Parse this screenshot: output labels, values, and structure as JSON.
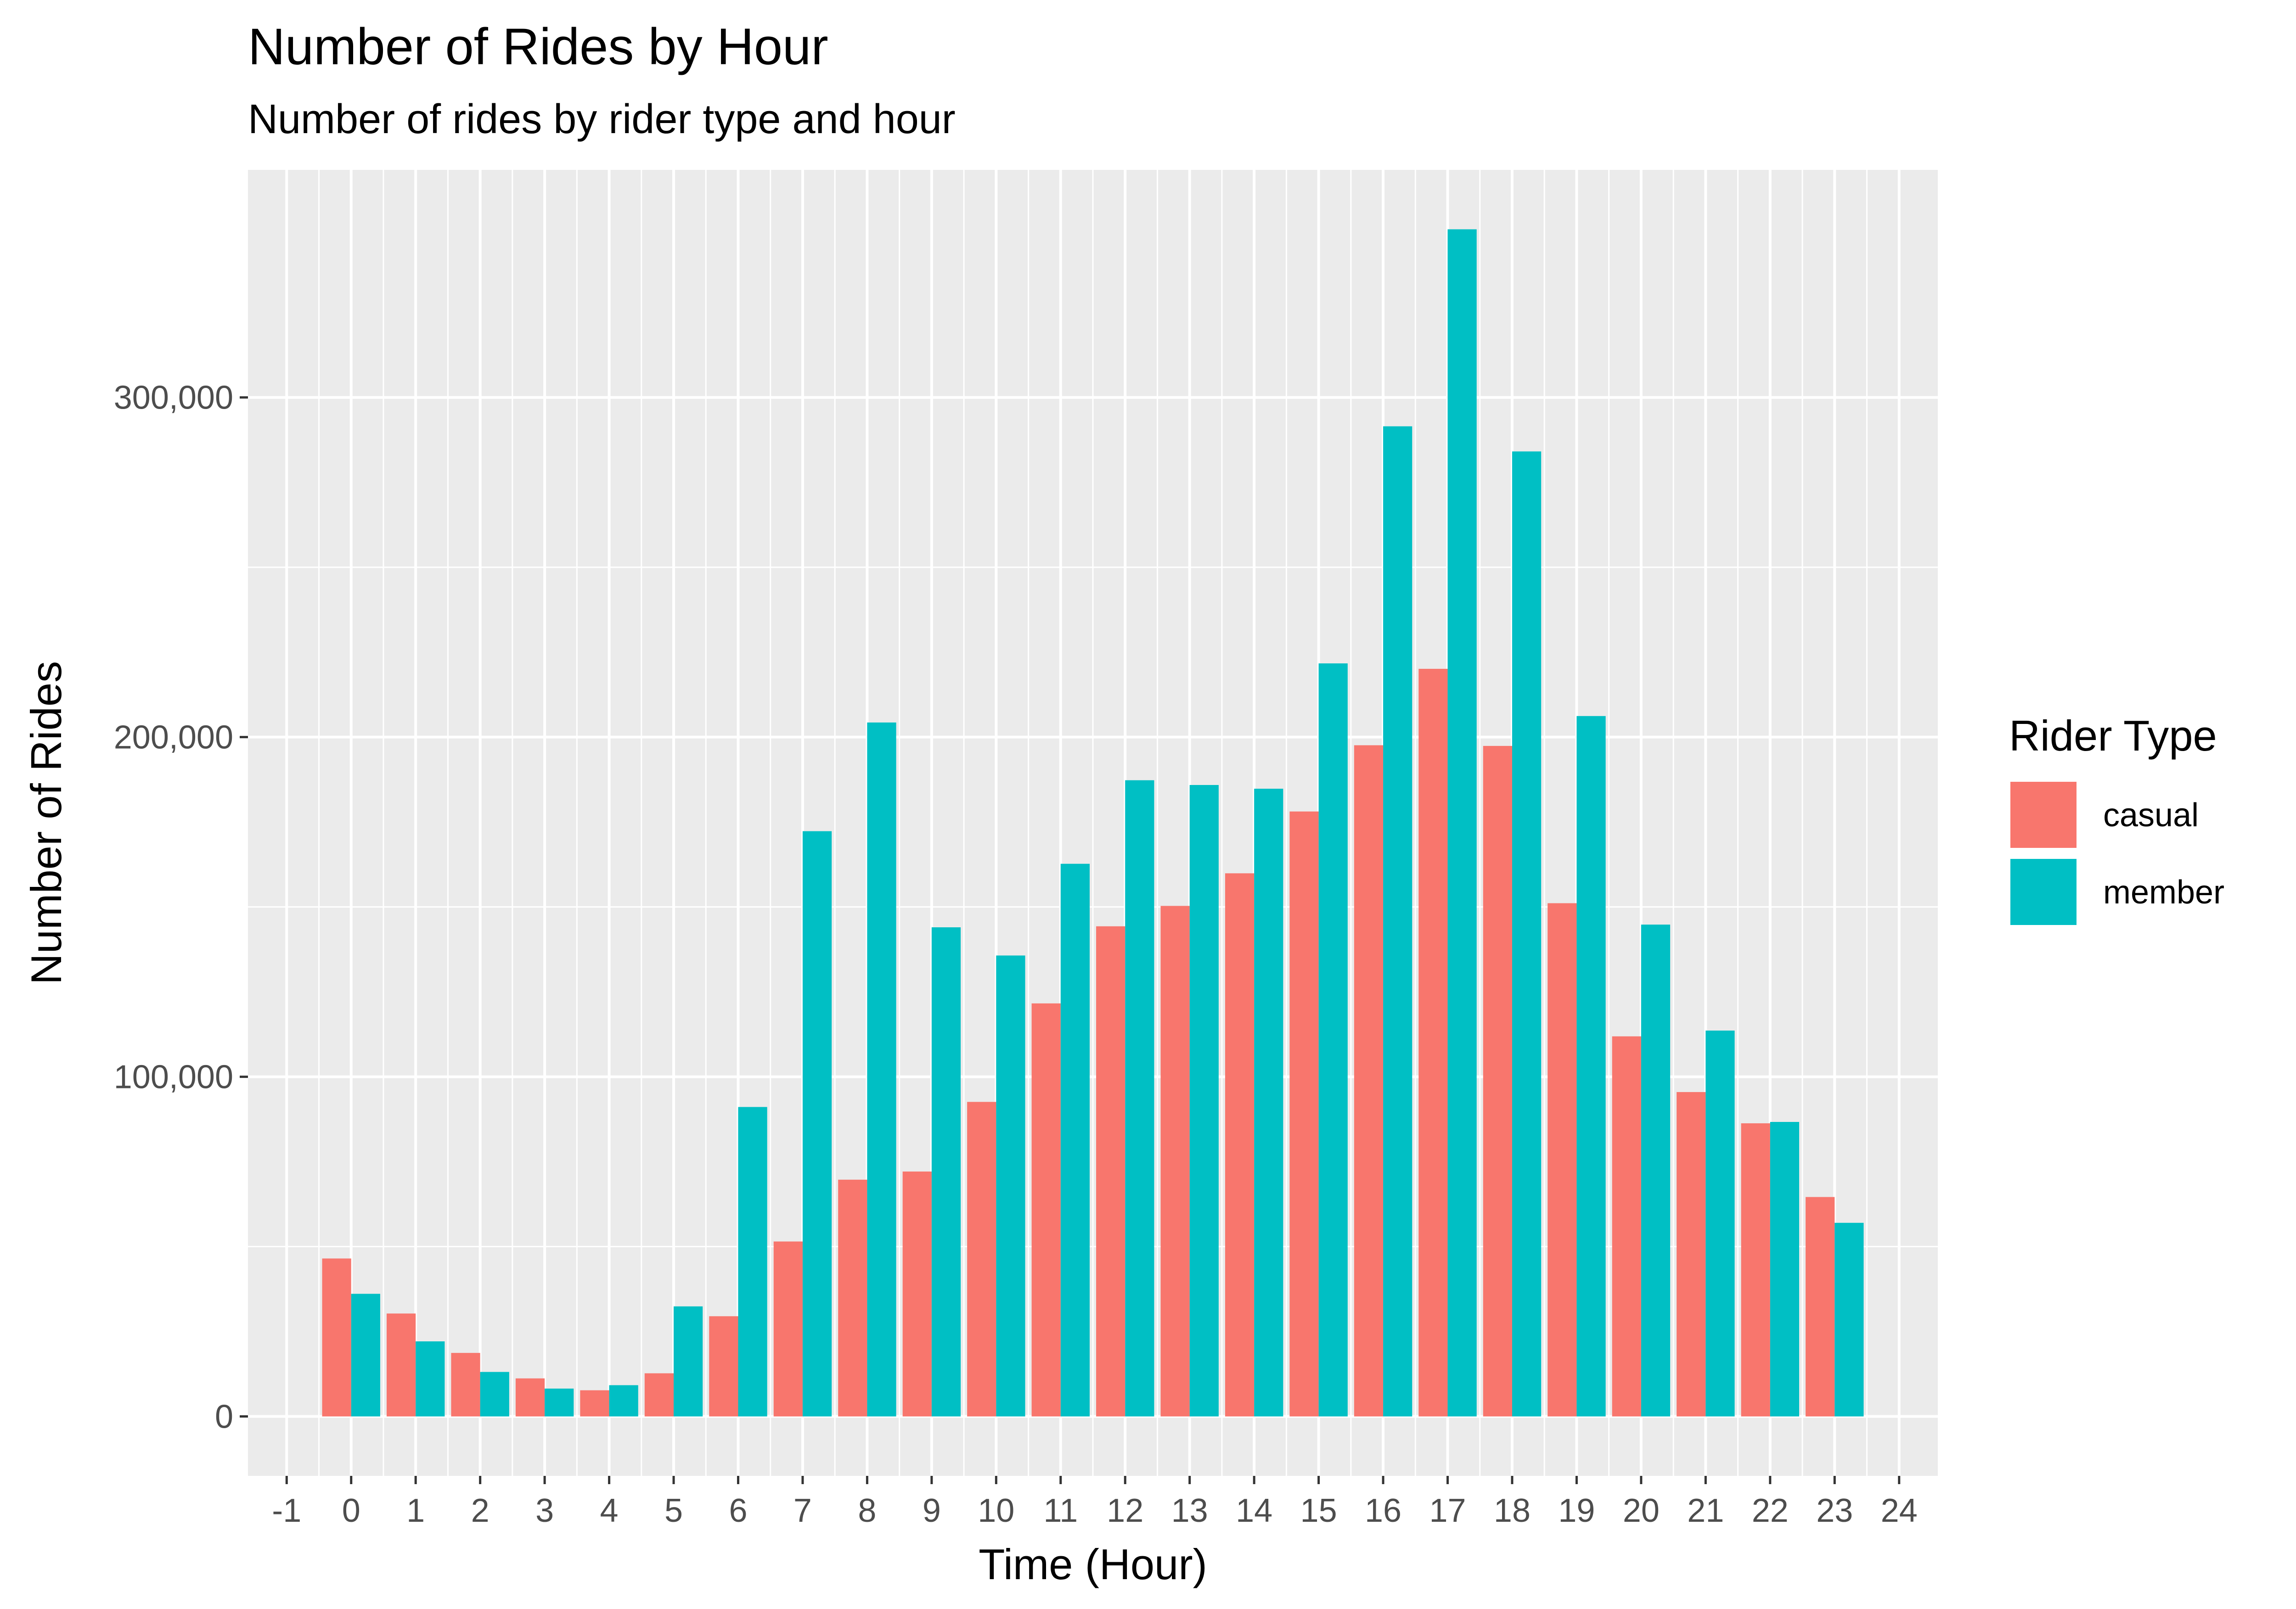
{
  "chart_data": {
    "type": "bar",
    "title": "Number of Rides by Hour",
    "subtitle": "Number of rides by rider type and hour",
    "xlabel": "Time (Hour)",
    "ylabel": "Number of Rides",
    "x_ticks": [
      "-1",
      "0",
      "1",
      "2",
      "3",
      "4",
      "5",
      "6",
      "7",
      "8",
      "9",
      "10",
      "11",
      "12",
      "13",
      "14",
      "15",
      "16",
      "17",
      "18",
      "19",
      "20",
      "21",
      "22",
      "23",
      "24"
    ],
    "xlim": [
      -1.6,
      24.6
    ],
    "y_ticks": [
      0,
      100000,
      200000,
      300000
    ],
    "y_tick_labels": [
      "0",
      "100,000",
      "200,000",
      "300,000"
    ],
    "ylim": [
      -17500,
      367000
    ],
    "grid": true,
    "legend_title": "Rider Type",
    "legend_position": "right",
    "categories": [
      0,
      1,
      2,
      3,
      4,
      5,
      6,
      7,
      8,
      9,
      10,
      11,
      12,
      13,
      14,
      15,
      16,
      17,
      18,
      19,
      20,
      21,
      22,
      23
    ],
    "series": [
      {
        "name": "casual",
        "color": "#F8766D",
        "values": [
          46500,
          30300,
          18700,
          11200,
          7700,
          12700,
          29500,
          51500,
          69700,
          72100,
          92600,
          121600,
          144300,
          150300,
          159900,
          178100,
          197600,
          220100,
          197400,
          151100,
          111900,
          95500,
          86300,
          64600
        ]
      },
      {
        "name": "member",
        "color": "#00BFC4",
        "values": [
          36100,
          22100,
          13100,
          8200,
          9200,
          32400,
          91100,
          172300,
          204300,
          144000,
          135700,
          162700,
          187300,
          185900,
          184800,
          221700,
          291500,
          349500,
          284100,
          206200,
          144800,
          113600,
          86700,
          57000
        ]
      }
    ]
  }
}
